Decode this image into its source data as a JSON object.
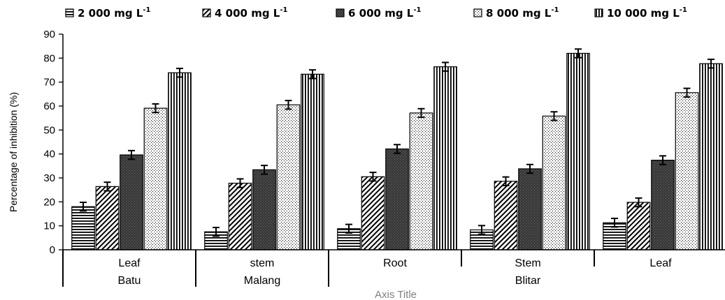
{
  "chart_data": {
    "type": "bar",
    "ylabel": "Percentage of inhibition (%)",
    "xlabel": "Axis Title",
    "ylim": [
      0,
      90
    ],
    "yticks": [
      0,
      10,
      20,
      30,
      40,
      50,
      60,
      70,
      80,
      90
    ],
    "grid": false,
    "legend_position": "top",
    "categories": [
      "Leaf",
      "stem",
      "Root",
      "Stem",
      "Leaf"
    ],
    "groups": [
      {
        "label": "Batu",
        "span": 1
      },
      {
        "label": "Malang",
        "span": 1
      },
      {
        "label": "Blitar",
        "span": 3
      }
    ],
    "series": [
      {
        "name": "2 000 mg L",
        "unit_sup": "-1",
        "pattern": "hlines",
        "values": [
          18,
          7.5,
          8.8,
          8.3,
          11.3
        ],
        "errors": [
          1.8,
          1.8,
          1.8,
          1.8,
          1.8
        ]
      },
      {
        "name": "4 000 mg L",
        "unit_sup": "-1",
        "pattern": "diag",
        "values": [
          26.4,
          27.8,
          30.5,
          28.6,
          19.8
        ],
        "errors": [
          1.8,
          1.8,
          1.8,
          1.8,
          1.8
        ]
      },
      {
        "name": "6 000 mg L",
        "unit_sup": "-1",
        "pattern": "dark",
        "values": [
          39.6,
          33.4,
          42.1,
          33.8,
          37.4
        ],
        "errors": [
          1.8,
          1.8,
          1.8,
          1.8,
          1.8
        ]
      },
      {
        "name": "8 000 mg L",
        "unit_sup": "-1",
        "pattern": "dots",
        "values": [
          59.1,
          60.5,
          57.1,
          55.8,
          65.6
        ],
        "errors": [
          1.8,
          1.8,
          1.8,
          1.8,
          1.8
        ]
      },
      {
        "name": "10 000 mg L",
        "unit_sup": "-1",
        "pattern": "vlines",
        "values": [
          73.9,
          73.3,
          76.4,
          82.0,
          77.7
        ],
        "errors": [
          1.8,
          1.8,
          1.8,
          1.8,
          1.8
        ]
      }
    ]
  }
}
